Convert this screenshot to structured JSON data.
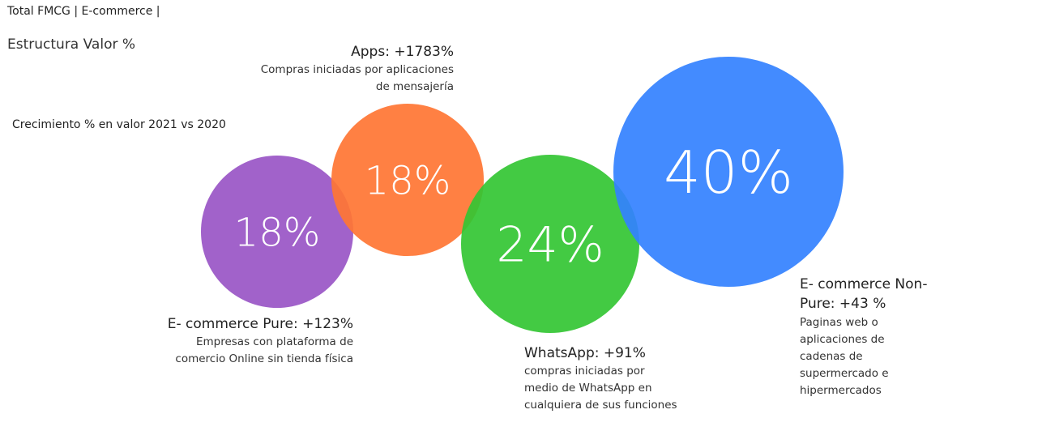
{
  "header": {
    "title": "Total FMCG | E-commerce |",
    "subtitle": "Estructura Valor %",
    "note": "Crecimiento % en valor 2021 vs 2020"
  },
  "chart_data": {
    "type": "bubble",
    "title": "Estructura Valor %",
    "series": [
      {
        "name": "E- commerce Pure",
        "share": 18,
        "share_label": "18%",
        "growth_label": "E- commerce Pure: +123%",
        "growth": 123,
        "desc": [
          "Empresas con plataforma de",
          "comercio Online sin tienda física"
        ],
        "color": "#9955C5"
      },
      {
        "name": "Apps",
        "share": 18,
        "share_label": "18%",
        "growth_label": "Apps: +1783%",
        "growth": 1783,
        "desc": [
          "Compras iniciadas por aplicaciones",
          "de mensajería"
        ],
        "color": "#FF7533"
      },
      {
        "name": "WhatsApp",
        "share": 24,
        "share_label": "24%",
        "growth_label": "WhatsApp: +91%",
        "growth": 91,
        "desc": [
          "compras iniciadas por",
          "medio de WhatsApp en",
          "cualquiera de sus funciones"
        ],
        "color": "#33C533"
      },
      {
        "name": "E- commerce Non-Pure",
        "share": 40,
        "share_label": "40%",
        "growth_label": "E- commerce Non-\nPure: +43 %",
        "growth": 43,
        "desc": [
          "Paginas web o",
          "aplicaciones de",
          "cadenas de",
          "supermercado e",
          "hipermercados"
        ],
        "color": "#3381FF"
      }
    ]
  }
}
